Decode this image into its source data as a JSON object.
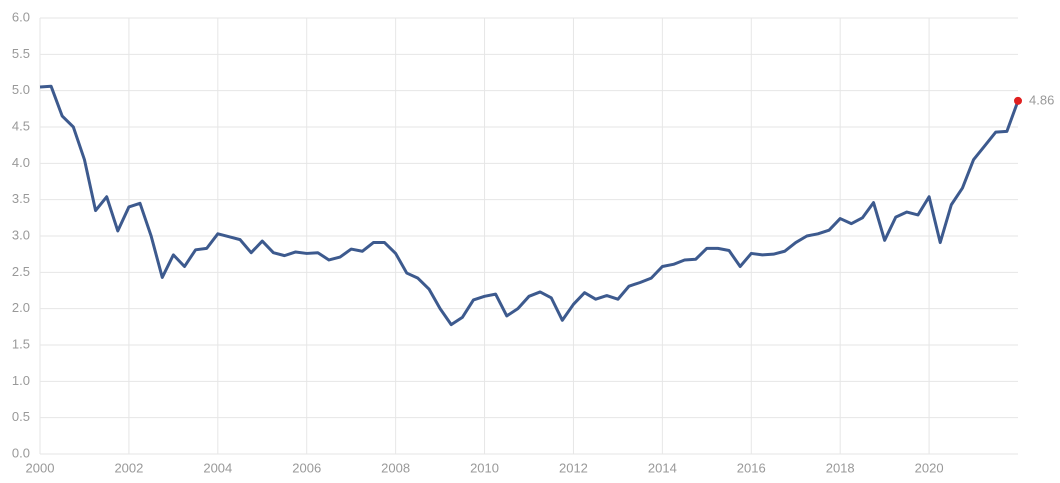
{
  "chart_data": {
    "type": "line",
    "x": [
      2000,
      2000.25,
      2000.5,
      2000.75,
      2001,
      2001.25,
      2001.5,
      2001.75,
      2002,
      2002.25,
      2002.5,
      2002.75,
      2003,
      2003.25,
      2003.5,
      2003.75,
      2004,
      2004.25,
      2004.5,
      2004.75,
      2005,
      2005.25,
      2005.5,
      2005.75,
      2006,
      2006.25,
      2006.5,
      2006.75,
      2007,
      2007.25,
      2007.5,
      2007.75,
      2008,
      2008.25,
      2008.5,
      2008.75,
      2009,
      2009.25,
      2009.5,
      2009.75,
      2010,
      2010.25,
      2010.5,
      2010.75,
      2011,
      2011.25,
      2011.5,
      2011.75,
      2012,
      2012.25,
      2012.5,
      2012.75,
      2013,
      2013.25,
      2013.5,
      2013.75,
      2014,
      2014.25,
      2014.5,
      2014.75,
      2015,
      2015.25,
      2015.5,
      2015.75,
      2016,
      2016.25,
      2016.5,
      2016.75,
      2017,
      2017.25,
      2017.5,
      2017.75,
      2018,
      2018.25,
      2018.5,
      2018.75,
      2019,
      2019.25,
      2019.5,
      2019.75,
      2020,
      2020.25,
      2020.5,
      2020.75,
      2021,
      2021.25,
      2021.5,
      2021.75,
      2022
    ],
    "series": [
      {
        "color": "#3d5a8e",
        "values": [
          5.05,
          5.06,
          4.65,
          4.5,
          4.05,
          3.35,
          3.54,
          3.07,
          3.4,
          3.45,
          3.0,
          2.43,
          2.74,
          2.58,
          2.81,
          2.83,
          3.03,
          2.99,
          2.95,
          2.77,
          2.93,
          2.77,
          2.73,
          2.78,
          2.76,
          2.77,
          2.67,
          2.71,
          2.82,
          2.79,
          2.91,
          2.91,
          2.76,
          2.49,
          2.42,
          2.27,
          2.0,
          1.78,
          1.88,
          2.12,
          2.17,
          2.2,
          1.9,
          2.0,
          2.17,
          2.23,
          2.15,
          1.84,
          2.06,
          2.22,
          2.13,
          2.18,
          2.13,
          2.31,
          2.36,
          2.42,
          2.58,
          2.61,
          2.67,
          2.68,
          2.83,
          2.83,
          2.8,
          2.58,
          2.76,
          2.74,
          2.75,
          2.79,
          2.91,
          3.0,
          3.03,
          3.08,
          3.24,
          3.17,
          3.25,
          3.46,
          2.94,
          3.26,
          3.33,
          3.29,
          3.54,
          2.91,
          3.43,
          3.66,
          4.05,
          4.24,
          4.43,
          4.44,
          4.86
        ]
      }
    ],
    "end_marker_color": "#e02020",
    "xlim": [
      2000,
      2022
    ],
    "xticks": [
      2000,
      2002,
      2004,
      2006,
      2008,
      2010,
      2012,
      2014,
      2016,
      2018,
      2020
    ],
    "ylim": [
      0,
      6
    ],
    "yticks": [
      {
        "value": 0,
        "label": "0.0"
      },
      0.5,
      {
        "value": 1,
        "label": "1.0"
      },
      1.5,
      {
        "value": 2,
        "label": "2.0"
      },
      2.5,
      {
        "value": 3,
        "label": "3.0"
      },
      3.5,
      {
        "value": 4,
        "label": "4.0"
      },
      4.5,
      {
        "value": 5,
        "label": "5.0"
      },
      5.5,
      {
        "value": 6,
        "label": "6.0"
      }
    ],
    "grid": true
  }
}
